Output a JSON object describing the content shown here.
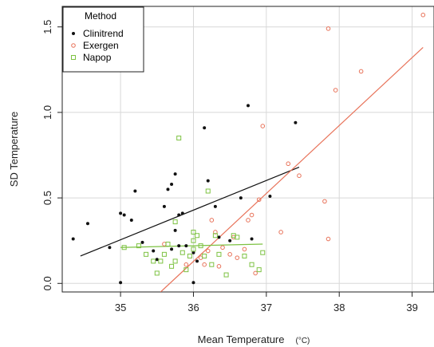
{
  "chart_data": {
    "type": "scatter",
    "xlabel": "Mean Temperature",
    "xlabel_unit": "(°C)",
    "ylabel": "SD Temperature",
    "xlim": [
      34.2,
      39.3
    ],
    "ylim": [
      -0.05,
      1.62
    ],
    "x_ticks": [
      35,
      36,
      37,
      38,
      39
    ],
    "y_ticks": [
      0.0,
      0.5,
      1.0,
      1.5
    ],
    "x_tick_labels": [
      "35",
      "36",
      "37",
      "38",
      "39"
    ],
    "y_tick_labels": [
      "0.0",
      "0.5",
      "1.0",
      "1.5"
    ],
    "grid": true,
    "legend": {
      "title": "Method",
      "position": "top-left",
      "entries": [
        "Clinitrend",
        "Exergen",
        "Napop"
      ]
    },
    "colors": {
      "Clinitrend": "#111111",
      "Exergen": "#e8735a",
      "Napop": "#7dc242",
      "grid": "#d8d8d8"
    },
    "series": [
      {
        "name": "Clinitrend",
        "marker": "filled-dot",
        "points": [
          [
            34.35,
            0.26
          ],
          [
            34.55,
            0.35
          ],
          [
            34.85,
            0.21
          ],
          [
            35.0,
            0.41
          ],
          [
            35.05,
            0.4
          ],
          [
            35.15,
            0.37
          ],
          [
            35.2,
            0.54
          ],
          [
            35.3,
            0.24
          ],
          [
            35.45,
            0.19
          ],
          [
            35.5,
            0.14
          ],
          [
            35.6,
            0.45
          ],
          [
            35.65,
            0.55
          ],
          [
            35.7,
            0.58
          ],
          [
            35.75,
            0.64
          ],
          [
            35.75,
            0.31
          ],
          [
            35.8,
            0.4
          ],
          [
            35.85,
            0.41
          ],
          [
            35.7,
            0.2
          ],
          [
            35.8,
            0.22
          ],
          [
            35.9,
            0.22
          ],
          [
            36.0,
            0.18
          ],
          [
            36.05,
            0.13
          ],
          [
            36.15,
            0.91
          ],
          [
            36.2,
            0.6
          ],
          [
            36.3,
            0.45
          ],
          [
            36.35,
            0.27
          ],
          [
            36.5,
            0.25
          ],
          [
            36.65,
            0.5
          ],
          [
            36.75,
            1.04
          ],
          [
            36.8,
            0.26
          ],
          [
            37.05,
            0.51
          ],
          [
            37.4,
            0.94
          ],
          [
            35.0,
            0.005
          ],
          [
            36.0,
            0.005
          ]
        ],
        "trend": [
          [
            34.45,
            0.16
          ],
          [
            37.45,
            0.68
          ]
        ]
      },
      {
        "name": "Exergen",
        "marker": "open-circle",
        "points": [
          [
            35.6,
            0.23
          ],
          [
            35.9,
            0.11
          ],
          [
            36.1,
            0.15
          ],
          [
            36.2,
            0.19
          ],
          [
            36.3,
            0.3
          ],
          [
            36.35,
            0.1
          ],
          [
            36.4,
            0.21
          ],
          [
            36.5,
            0.17
          ],
          [
            36.55,
            0.27
          ],
          [
            36.6,
            0.15
          ],
          [
            36.7,
            0.2
          ],
          [
            36.75,
            0.37
          ],
          [
            36.8,
            0.4
          ],
          [
            36.85,
            0.06
          ],
          [
            36.9,
            0.49
          ],
          [
            36.95,
            0.92
          ],
          [
            37.2,
            0.3
          ],
          [
            37.3,
            0.7
          ],
          [
            37.45,
            0.63
          ],
          [
            37.8,
            0.48
          ],
          [
            37.85,
            0.26
          ],
          [
            37.85,
            1.49
          ],
          [
            37.95,
            1.13
          ],
          [
            38.3,
            1.24
          ],
          [
            39.15,
            1.57
          ],
          [
            36.25,
            0.37
          ],
          [
            36.15,
            0.11
          ]
        ],
        "trend": [
          [
            35.55,
            -0.05
          ],
          [
            39.15,
            1.38
          ]
        ]
      },
      {
        "name": "Napop",
        "marker": "open-square",
        "points": [
          [
            35.05,
            0.21
          ],
          [
            35.25,
            0.22
          ],
          [
            35.35,
            0.17
          ],
          [
            35.45,
            0.13
          ],
          [
            35.5,
            0.06
          ],
          [
            35.55,
            0.13
          ],
          [
            35.6,
            0.17
          ],
          [
            35.65,
            0.23
          ],
          [
            35.7,
            0.1
          ],
          [
            35.75,
            0.36
          ],
          [
            35.8,
            0.85
          ],
          [
            35.85,
            0.18
          ],
          [
            35.9,
            0.08
          ],
          [
            35.95,
            0.16
          ],
          [
            36.0,
            0.25
          ],
          [
            36.0,
            0.3
          ],
          [
            36.05,
            0.28
          ],
          [
            36.1,
            0.22
          ],
          [
            36.15,
            0.16
          ],
          [
            36.2,
            0.54
          ],
          [
            36.25,
            0.11
          ],
          [
            36.3,
            0.28
          ],
          [
            36.35,
            0.17
          ],
          [
            36.45,
            0.05
          ],
          [
            36.55,
            0.28
          ],
          [
            36.6,
            0.27
          ],
          [
            36.7,
            0.16
          ],
          [
            36.8,
            0.11
          ],
          [
            36.9,
            0.08
          ],
          [
            36.95,
            0.18
          ],
          [
            35.75,
            0.13
          ],
          [
            36.0,
            0.2
          ]
        ],
        "trend": [
          [
            35.0,
            0.21
          ],
          [
            36.95,
            0.23
          ]
        ]
      }
    ]
  }
}
